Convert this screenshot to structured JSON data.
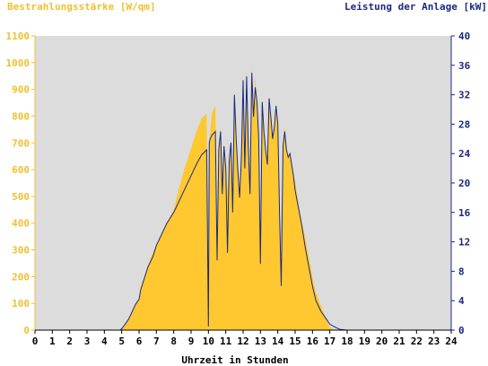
{
  "chart_data": {
    "type": "area",
    "left_title": "Bestrahlungsstärke [W/qm]",
    "right_title": "Leistung der Anlage [kW]",
    "xlabel": "Uhrzeit in Stunden",
    "xlim": [
      0,
      24
    ],
    "x_ticks": [
      "0",
      "1",
      "2",
      "3",
      "4",
      "5",
      "6",
      "7",
      "8",
      "9",
      "10",
      "11",
      "12",
      "13",
      "14",
      "15",
      "16",
      "17",
      "18",
      "19",
      "20",
      "21",
      "22",
      "23",
      "24"
    ],
    "y_left_lim": [
      0,
      1100
    ],
    "y_left_ticks": [
      "0",
      "100",
      "200",
      "300",
      "400",
      "500",
      "600",
      "700",
      "800",
      "900",
      "1000",
      "1100"
    ],
    "y_right_lim": [
      0,
      40
    ],
    "y_right_ticks": [
      "0",
      "4",
      "8",
      "12",
      "16",
      "20",
      "24",
      "28",
      "32",
      "36",
      "40"
    ],
    "grid": false,
    "colors": {
      "plot_bg": "#dcdcdc",
      "irradiance_fill": "#ffc830",
      "power_line": "#1a2a80",
      "left_axis_text": "#f0c030",
      "right_axis_text": "#1a2a80",
      "x_axis_text": "#000000"
    },
    "series": [
      {
        "unit": "W/qm",
        "axis": "left",
        "x": [
          0,
          4.9,
          5.0,
          5.2,
          5.4,
          5.6,
          5.8,
          6.0,
          6.1,
          6.3,
          6.5,
          6.8,
          7.0,
          7.3,
          7.6,
          8.0,
          8.3,
          8.6,
          9.0,
          9.3,
          9.6,
          9.9,
          10.0,
          10.05,
          10.1,
          10.2,
          10.4,
          10.5,
          10.6,
          10.7,
          10.8,
          10.9,
          11.0,
          11.1,
          11.2,
          11.3,
          11.4,
          11.5,
          11.6,
          11.7,
          11.8,
          11.9,
          12.0,
          12.1,
          12.2,
          12.3,
          12.4,
          12.5,
          12.6,
          12.7,
          12.8,
          12.9,
          13.0,
          13.1,
          13.2,
          13.3,
          13.4,
          13.5,
          13.6,
          13.7,
          13.8,
          13.9,
          14.0,
          14.1,
          14.2,
          14.3,
          14.4,
          14.5,
          14.6,
          14.7,
          14.8,
          14.9,
          15.0,
          15.2,
          15.4,
          15.6,
          15.8,
          16.0,
          16.2,
          16.5,
          16.8,
          17.0,
          17.3,
          17.6,
          18.0,
          18.3,
          18.6,
          18.8,
          19.0,
          19.2,
          19.4,
          19.6,
          19.8,
          20.0,
          20.1,
          20.3,
          24
        ],
        "values": [
          0,
          0,
          5,
          20,
          40,
          70,
          100,
          120,
          160,
          200,
          240,
          290,
          320,
          360,
          400,
          450,
          530,
          600,
          680,
          740,
          790,
          810,
          30,
          700,
          740,
          810,
          840,
          300,
          680,
          760,
          550,
          700,
          620,
          500,
          650,
          700,
          470,
          850,
          700,
          600,
          520,
          650,
          880,
          600,
          980,
          700,
          520,
          990,
          800,
          950,
          860,
          720,
          300,
          860,
          750,
          680,
          630,
          870,
          800,
          720,
          760,
          830,
          780,
          450,
          260,
          700,
          760,
          690,
          650,
          660,
          620,
          580,
          560,
          470,
          400,
          340,
          270,
          200,
          140,
          90,
          40,
          10,
          0,
          0,
          0,
          0,
          0,
          0,
          0,
          0,
          0,
          0,
          0,
          0,
          0,
          0,
          0
        ]
      },
      {
        "unit": "kW",
        "axis": "right",
        "x": [
          0,
          4.9,
          5.0,
          5.2,
          5.4,
          5.6,
          5.8,
          6.0,
          6.1,
          6.3,
          6.5,
          6.8,
          7.0,
          7.3,
          7.6,
          8.0,
          8.3,
          8.6,
          9.0,
          9.3,
          9.6,
          9.9,
          10.0,
          10.05,
          10.1,
          10.2,
          10.4,
          10.5,
          10.6,
          10.7,
          10.8,
          10.9,
          11.0,
          11.1,
          11.2,
          11.3,
          11.4,
          11.5,
          11.6,
          11.7,
          11.8,
          11.9,
          12.0,
          12.1,
          12.2,
          12.3,
          12.4,
          12.5,
          12.6,
          12.7,
          12.8,
          12.9,
          13.0,
          13.1,
          13.2,
          13.3,
          13.4,
          13.5,
          13.6,
          13.7,
          13.8,
          13.9,
          14.0,
          14.1,
          14.2,
          14.3,
          14.4,
          14.5,
          14.6,
          14.7,
          14.8,
          14.9,
          15.0,
          15.2,
          15.4,
          15.6,
          15.8,
          16.0,
          16.2,
          16.5,
          16.8,
          17.0,
          17.3,
          17.6,
          18.0,
          18.3,
          18.6,
          18.8,
          19.0,
          19.2,
          19.4,
          19.6,
          19.8,
          20.0,
          20.1,
          20.3,
          24
        ],
        "values": [
          0,
          0,
          0.2,
          0.8,
          1.5,
          2.5,
          3.5,
          4.2,
          5.5,
          7.0,
          8.5,
          10.0,
          11.5,
          13.0,
          14.5,
          16.0,
          17.5,
          19.0,
          21.0,
          22.5,
          23.8,
          24.5,
          0.5,
          25.5,
          26.0,
          26.5,
          27.0,
          9.5,
          24.5,
          27.0,
          18.5,
          25.0,
          22.0,
          10.5,
          23.0,
          25.5,
          16.0,
          32.0,
          26.0,
          21.5,
          18.0,
          23.5,
          34.0,
          22.0,
          34.5,
          25.0,
          18.5,
          35.0,
          29.0,
          33.0,
          31.0,
          26.0,
          9.0,
          31.0,
          27.0,
          24.5,
          22.5,
          31.5,
          29.0,
          26.0,
          27.5,
          30.5,
          28.0,
          16.0,
          6.0,
          25.0,
          27.0,
          24.5,
          23.5,
          24.0,
          22.5,
          21.0,
          19.0,
          16.5,
          14.0,
          11.0,
          8.5,
          6.0,
          4.0,
          2.5,
          1.5,
          0.8,
          0.4,
          0.1,
          0,
          0,
          0,
          0,
          0,
          0,
          0,
          0,
          0,
          0,
          0,
          0,
          0
        ]
      }
    ]
  }
}
